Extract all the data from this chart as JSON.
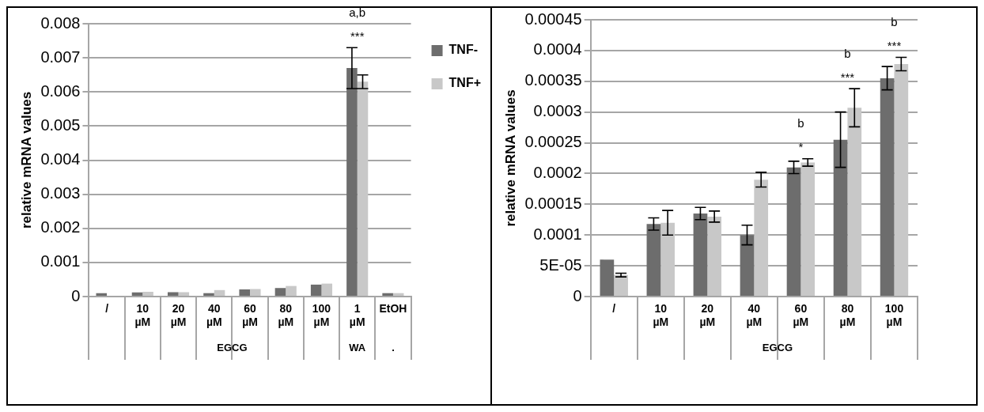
{
  "chart_data": [
    {
      "type": "bar",
      "ylabel": "relative mRNA values",
      "categories": [
        "/",
        "10 µM",
        "20 µM",
        "40 µM",
        "60 µM",
        "80 µM",
        "100 µM",
        "1 µM",
        "EtOH"
      ],
      "series": [
        {
          "name": "TNF-",
          "color": "#6d6d6d",
          "values": [
            0.0001,
            0.00012,
            0.00013,
            0.0001,
            0.00021,
            0.00025,
            0.00035,
            0.0067,
            0.0001
          ],
          "errors": [
            null,
            null,
            null,
            null,
            null,
            null,
            null,
            0.0006,
            null
          ]
        },
        {
          "name": "TNF+",
          "color": "#c8c8c8",
          "values": [
            null,
            0.00014,
            0.00013,
            0.00019,
            0.00022,
            0.00031,
            0.00038,
            0.0063,
            0.0001
          ],
          "errors": [
            null,
            null,
            null,
            null,
            null,
            null,
            null,
            0.0002,
            null
          ]
        }
      ],
      "ylim": [
        0,
        0.008
      ],
      "yticks": [
        0,
        0.001,
        0.002,
        0.003,
        0.004,
        0.005,
        0.006,
        0.007,
        0.008
      ],
      "grid": "y",
      "legend": "top right",
      "annotations": [
        {
          "text": "***",
          "x": "1 µM",
          "y": 0.0073
        },
        {
          "text": "a,b",
          "x": "1 µM",
          "y": 0.0073
        },
        "EGCG",
        "WA",
        "."
      ]
    },
    {
      "type": "bar",
      "ylabel": "relative mRNA values",
      "categories": [
        "/",
        "10 µM",
        "20 µM",
        "40 µM",
        "60 µM",
        "80 µM",
        "100 µM"
      ],
      "series": [
        {
          "color": "#6d6d6d",
          "values": [
            6e-05,
            0.000118,
            0.000135,
            0.0001,
            0.00021,
            0.000255,
            0.000355
          ],
          "errors": [
            null,
            1e-05,
            1e-05,
            1.6e-05,
            1e-05,
            4.5e-05,
            1.9e-05
          ]
        },
        {
          "color": "#c8c8c8",
          "values": [
            3.5e-05,
            0.00012,
            0.00013,
            0.00019,
            0.000218,
            0.000307,
            0.000378
          ],
          "errors": [
            3e-06,
            2e-05,
            9e-06,
            1.2e-05,
            6e-06,
            3.1e-05,
            1.1e-05
          ]
        }
      ],
      "ylim": [
        0,
        0.00045
      ],
      "yticks": [
        0,
        {
          "value": 5e-05,
          "label": "5E-05"
        },
        0.0001,
        0.00015,
        0.0002,
        0.00025,
        0.0003,
        0.00035,
        0.0004,
        0.00045
      ],
      "grid": "y",
      "legend": false,
      "annotations": [
        {
          "text": "*",
          "x": "60 µM",
          "y": 0.000224
        },
        {
          "text": "b",
          "x": "60 µM",
          "y": 0.000224
        },
        {
          "text": "***",
          "x": "80 µM",
          "y": 0.000338
        },
        {
          "text": "b",
          "x": "80 µM",
          "y": 0.000338
        },
        {
          "text": "***",
          "x": "100 µM",
          "y": 0.000389
        },
        {
          "text": "b",
          "x": "100 µM",
          "y": 0.000389
        },
        "EGCG"
      ]
    }
  ]
}
